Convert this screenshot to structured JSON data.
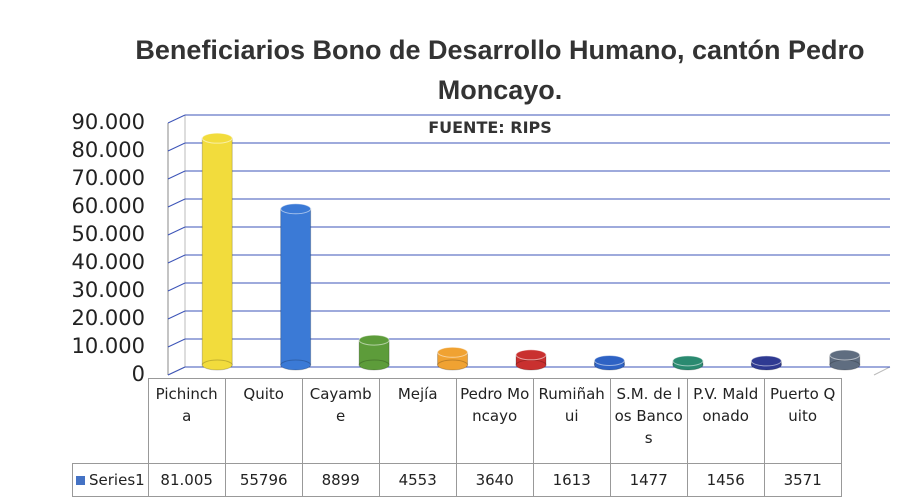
{
  "chart_data": {
    "type": "bar",
    "title": "Beneficiarios Bono de Desarrollo Humano, cantón Pedro Moncayo.",
    "subtitle": "FUENTE: RIPS",
    "categories": [
      "Pichincha",
      "Quito",
      "Cayambe",
      "Mejía",
      "Pedro Moncayo",
      "Rumiñahui",
      "S.M. de los Bancos",
      "P.V. Maldonado",
      "Puerto Quito"
    ],
    "series": [
      {
        "name": "Series1",
        "color": "#4472c4",
        "colors": [
          "#f2dc3c",
          "#3b7ad6",
          "#5d9c3a",
          "#f0a232",
          "#c9302f",
          "#2e62c4",
          "#2a8a70",
          "#2f3a92",
          "#5f6d80"
        ],
        "values": [
          81005,
          55796,
          8899,
          4553,
          3640,
          1613,
          1477,
          1456,
          3571
        ],
        "value_labels": [
          "81.005",
          "55796",
          "8899",
          "4553",
          "3640",
          "1613",
          "1477",
          "1456",
          "3571"
        ]
      }
    ],
    "ylim": [
      0,
      90000
    ],
    "yticks": [
      0,
      {
        "value": 10000,
        "label": "10.000"
      },
      {
        "value": 20000,
        "label": "20.000"
      },
      {
        "value": 30000,
        "label": "30.000"
      },
      {
        "value": 40000,
        "label": "40.000"
      },
      {
        "value": 50000,
        "label": "50.000"
      },
      {
        "value": 60000,
        "label": "60.000"
      },
      {
        "value": 70000,
        "label": "70.000"
      },
      {
        "value": 80000,
        "label": "80.000"
      },
      {
        "value": 90000,
        "label": "90.000"
      }
    ],
    "grid": true
  }
}
